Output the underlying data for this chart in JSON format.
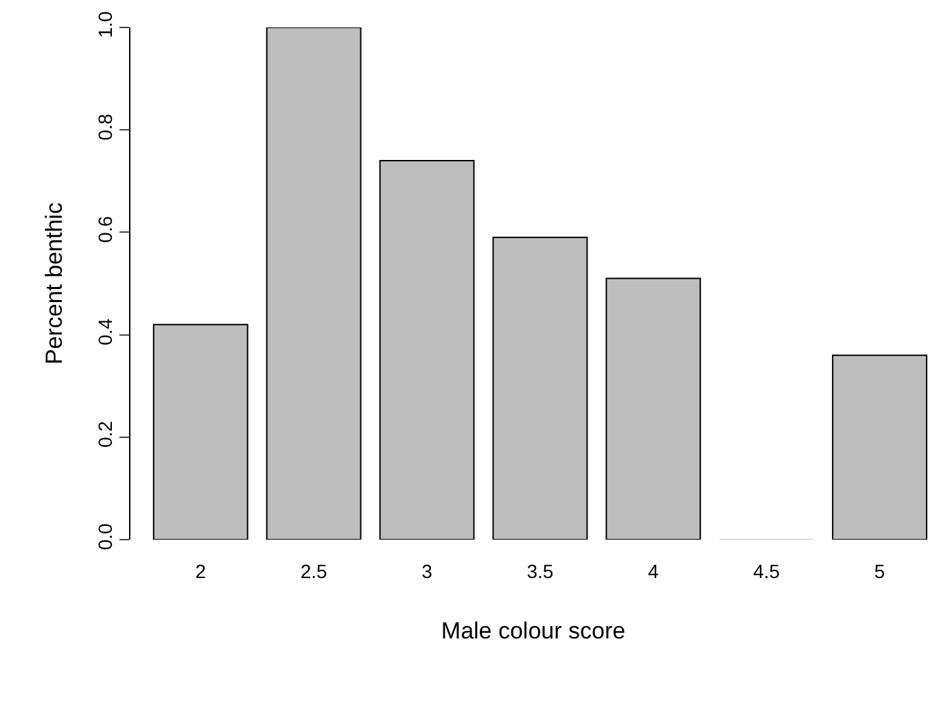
{
  "chart_data": {
    "type": "bar",
    "xlabel": "Male colour score",
    "ylabel": "Percent benthic",
    "categories": [
      "2",
      "2.5",
      "3",
      "3.5",
      "4",
      "4.5",
      "5"
    ],
    "values": [
      0.42,
      1.0,
      0.74,
      0.59,
      0.51,
      0.0,
      0.36
    ],
    "color": "#bebebe",
    "ylim": [
      0,
      1
    ],
    "yticks": [
      {
        "value": 0,
        "label": "0.0"
      },
      {
        "value": 0.2,
        "label": "0.2"
      },
      {
        "value": 0.4,
        "label": "0.4"
      },
      {
        "value": 0.6,
        "label": "0.6"
      },
      {
        "value": 0.8,
        "label": "0.8"
      },
      {
        "value": 1,
        "label": "1.0"
      }
    ]
  }
}
